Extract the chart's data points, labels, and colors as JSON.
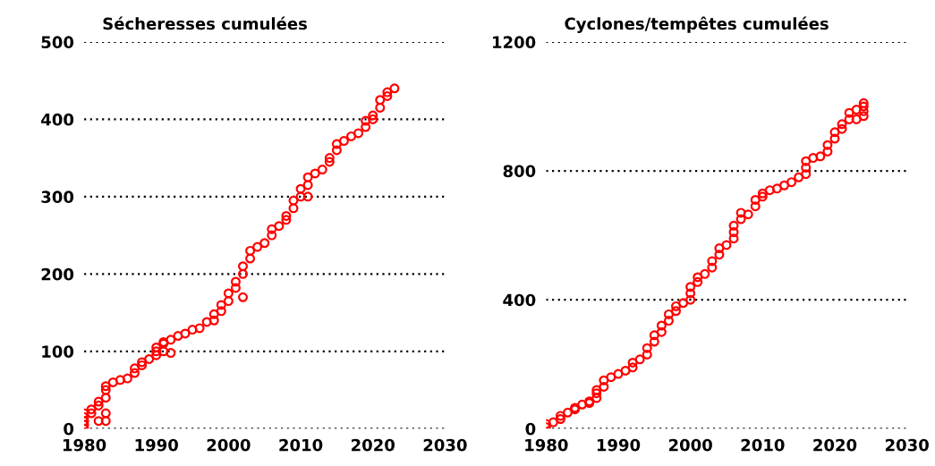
{
  "chart_data": [
    {
      "type": "scatter",
      "title": "Sécheresses cumulées",
      "marker": "circle",
      "grid": "y",
      "xlim": [
        1980,
        2030
      ],
      "xticks": [
        1980,
        1990,
        2000,
        2010,
        2020,
        2030
      ],
      "ylim": [
        0,
        500
      ],
      "yticks": [
        0,
        100,
        200,
        300,
        400,
        500
      ],
      "series": [
        {
          "color": "#ff0000",
          "x": [
            1980,
            1980,
            1980,
            1980,
            1980,
            1981,
            1981,
            1982,
            1982,
            1982,
            1983,
            1983,
            1983,
            1983,
            1983,
            1984,
            1985,
            1986,
            1987,
            1987,
            1988,
            1988,
            1989,
            1990,
            1990,
            1990,
            1991,
            1991,
            1991,
            1992,
            1992,
            1993,
            1994,
            1995,
            1996,
            1997,
            1998,
            1998,
            1999,
            1999,
            2000,
            2000,
            2001,
            2001,
            2002,
            2002,
            2002,
            2003,
            2003,
            2004,
            2005,
            2006,
            2006,
            2007,
            2008,
            2008,
            2009,
            2009,
            2010,
            2010,
            2011,
            2011,
            2011,
            2012,
            2013,
            2014,
            2014,
            2015,
            2015,
            2016,
            2017,
            2018,
            2019,
            2019,
            2020,
            2020,
            2021,
            2021,
            2022,
            2022,
            2023
          ],
          "values": [
            0,
            5,
            10,
            15,
            20,
            20,
            25,
            10,
            30,
            35,
            10,
            20,
            40,
            50,
            55,
            60,
            63,
            65,
            72,
            78,
            82,
            86,
            90,
            95,
            100,
            105,
            100,
            110,
            112,
            98,
            115,
            120,
            123,
            128,
            130,
            138,
            140,
            148,
            152,
            160,
            165,
            175,
            182,
            190,
            170,
            200,
            210,
            220,
            230,
            235,
            240,
            250,
            258,
            262,
            270,
            275,
            285,
            295,
            300,
            310,
            300,
            315,
            325,
            330,
            335,
            345,
            350,
            360,
            368,
            372,
            378,
            382,
            390,
            398,
            400,
            405,
            415,
            425,
            430,
            435,
            440
          ]
        }
      ]
    },
    {
      "type": "scatter",
      "title": "Cyclones/tempêtes cumulées",
      "marker": "circle",
      "grid": "y",
      "xlim": [
        1980,
        2030
      ],
      "xticks": [
        1980,
        1990,
        2000,
        2010,
        2020,
        2030
      ],
      "ylim": [
        0,
        1200
      ],
      "yticks": [
        0,
        400,
        800,
        1200
      ],
      "series": [
        {
          "color": "#ff0000",
          "x": [
            1980,
            1980,
            1981,
            1982,
            1982,
            1983,
            1984,
            1984,
            1985,
            1986,
            1986,
            1987,
            1987,
            1987,
            1988,
            1988,
            1989,
            1990,
            1991,
            1992,
            1992,
            1993,
            1994,
            1994,
            1995,
            1995,
            1996,
            1996,
            1997,
            1997,
            1998,
            1998,
            1999,
            2000,
            2000,
            2000,
            2001,
            2001,
            2002,
            2003,
            2003,
            2004,
            2004,
            2005,
            2006,
            2006,
            2006,
            2007,
            2007,
            2008,
            2009,
            2009,
            2010,
            2010,
            2011,
            2012,
            2013,
            2014,
            2015,
            2016,
            2016,
            2016,
            2017,
            2018,
            2019,
            2019,
            2020,
            2020,
            2021,
            2021,
            2022,
            2022,
            2023,
            2023,
            2024,
            2024,
            2024,
            2024
          ],
          "values": [
            5,
            15,
            20,
            30,
            40,
            50,
            60,
            65,
            75,
            80,
            85,
            95,
            110,
            120,
            130,
            150,
            160,
            170,
            180,
            190,
            205,
            215,
            230,
            250,
            270,
            290,
            300,
            320,
            335,
            355,
            365,
            380,
            390,
            400,
            420,
            440,
            455,
            470,
            480,
            500,
            520,
            540,
            560,
            570,
            590,
            610,
            630,
            650,
            670,
            665,
            690,
            710,
            720,
            730,
            740,
            745,
            755,
            765,
            780,
            790,
            810,
            830,
            840,
            845,
            860,
            880,
            900,
            920,
            930,
            945,
            960,
            980,
            990,
            960,
            970,
            985,
            1000,
            1010
          ]
        }
      ]
    }
  ]
}
